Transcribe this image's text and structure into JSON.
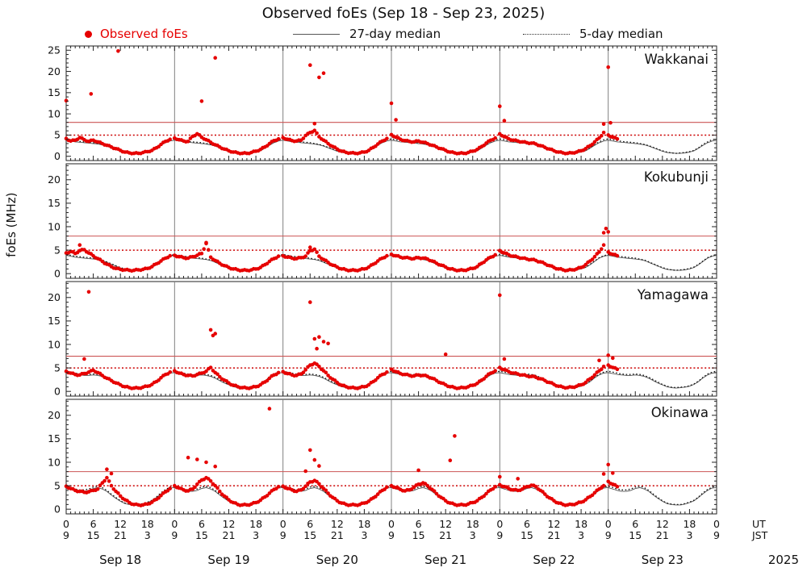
{
  "title": "Observed foEs (Sep 18 - Sep 23, 2025)",
  "ylabel": "foEs (MHz)",
  "legend": {
    "observed": "Observed foEs",
    "median27": "27-day median",
    "median5": "5-day median"
  },
  "axis": {
    "ut_tick_labels": [
      "0",
      "6",
      "12",
      "18"
    ],
    "jst_tick_labels": [
      "9",
      "15",
      "21",
      "3"
    ],
    "ut_label": "UT",
    "jst_label": "JST",
    "day_labels": [
      "Sep 18",
      "Sep 19",
      "Sep 20",
      "Sep 21",
      "Sep 22",
      "Sep 23"
    ],
    "year_label": "2025",
    "hours_total": 144
  },
  "colors": {
    "observed": "#e60000",
    "legend_observed_text": "#e60000",
    "median27": "#555555",
    "median5": "#111111",
    "threshold_solid": "#cc5555",
    "threshold_dotted": "#cc0000",
    "day_boundary": "#808080",
    "panel_border": "#222222"
  },
  "chart_data": {
    "type": "scatter",
    "x_unit": "hours UT since Sep 18 00:00",
    "x_range": [
      0,
      144
    ],
    "grid": "day-boundary vertical lines only",
    "legend_position": "top",
    "panels": [
      {
        "station": "Wakkanai",
        "y_ticks": [
          0,
          5,
          10,
          15,
          20,
          25
        ],
        "y_max": 26,
        "threshold_solid_mhz": 8,
        "threshold_dotted_mhz": 5,
        "observed_days": [
          [
            4.2,
            3.6,
            3.8,
            4.4,
            3.9,
            3.5,
            3.8,
            3.4,
            3.0,
            2.6,
            2.2,
            1.8,
            1.4,
            1.0,
            0.8,
            0.7,
            0.7,
            0.9,
            1.1,
            1.4,
            2.0,
            2.8,
            3.5,
            4.0
          ],
          [
            4.3,
            3.9,
            3.6,
            3.5,
            4.7,
            5.3,
            4.5,
            3.9,
            3.3,
            2.7,
            2.2,
            1.7,
            1.3,
            1.0,
            0.8,
            0.7,
            0.7,
            0.9,
            1.2,
            1.6,
            2.2,
            3.0,
            3.7,
            4.1
          ],
          [
            4.4,
            4.0,
            3.7,
            3.6,
            3.8,
            4.9,
            5.6,
            6.1,
            4.6,
            3.8,
            3.0,
            2.3,
            1.7,
            1.2,
            0.9,
            0.8,
            0.7,
            0.8,
            1.0,
            1.4,
            2.1,
            2.9,
            3.6,
            4.2
          ],
          [
            5.1,
            4.5,
            4.0,
            3.7,
            3.5,
            3.4,
            3.6,
            3.3,
            3.0,
            2.6,
            2.2,
            1.8,
            1.4,
            1.0,
            0.8,
            0.7,
            0.7,
            0.9,
            1.2,
            1.6,
            2.3,
            3.1,
            3.8,
            4.3
          ],
          [
            5.3,
            4.6,
            4.1,
            3.8,
            3.6,
            3.4,
            3.2,
            3.1,
            2.9,
            2.5,
            2.1,
            1.7,
            1.3,
            1.0,
            0.8,
            0.7,
            0.8,
            1.0,
            1.3,
            1.8,
            2.5,
            3.4,
            4.3,
            5.6
          ],
          [
            5.0,
            4.5,
            4.1
          ]
        ],
        "spikes": [
          [
            0,
            13.1
          ],
          [
            5.5,
            14.7
          ],
          [
            11.5,
            24.8
          ],
          [
            30,
            13.0
          ],
          [
            33,
            23.2
          ],
          [
            54,
            21.5
          ],
          [
            55,
            7.7
          ],
          [
            56,
            18.6
          ],
          [
            57,
            19.6
          ],
          [
            72,
            12.5
          ],
          [
            73,
            8.6
          ],
          [
            96,
            11.8
          ],
          [
            97,
            8.4
          ],
          [
            119,
            7.6
          ],
          [
            120,
            21.0
          ],
          [
            120.5,
            7.9
          ]
        ],
        "median27_daily": [
          3.8,
          3.6,
          3.4,
          3.3,
          3.2,
          3.1,
          3.0,
          2.9,
          2.7,
          2.4,
          2.0,
          1.6,
          1.2,
          0.9,
          0.8,
          0.7,
          0.7,
          0.8,
          1.0,
          1.3,
          1.9,
          2.6,
          3.2,
          3.6
        ],
        "median5_daily": [
          4.1,
          3.9,
          3.7,
          3.5,
          3.4,
          3.3,
          3.2,
          3.0,
          2.8,
          2.5,
          2.1,
          1.7,
          1.3,
          1.0,
          0.8,
          0.7,
          0.8,
          0.9,
          1.1,
          1.4,
          2.0,
          2.8,
          3.4,
          3.9
        ]
      },
      {
        "station": "Kokubunji",
        "y_ticks": [
          0,
          5,
          10,
          15,
          20
        ],
        "y_max": 23.4,
        "threshold_solid_mhz": 8,
        "threshold_dotted_mhz": 5,
        "observed_days": [
          [
            4.4,
            4.7,
            4.3,
            4.9,
            5.1,
            4.4,
            3.8,
            3.2,
            2.6,
            2.0,
            1.5,
            1.1,
            0.9,
            0.8,
            0.7,
            0.7,
            0.8,
            0.9,
            1.1,
            1.5,
            2.1,
            2.7,
            3.3,
            3.8
          ],
          [
            3.9,
            3.6,
            3.4,
            3.3,
            3.6,
            3.9,
            4.3,
            6.4,
            3.5,
            2.8,
            2.2,
            1.7,
            1.3,
            1.0,
            0.8,
            0.7,
            0.7,
            0.8,
            1.0,
            1.3,
            1.9,
            2.6,
            3.2,
            3.7
          ],
          [
            3.8,
            3.5,
            3.3,
            3.2,
            3.4,
            3.7,
            4.9,
            5.2,
            3.7,
            3.0,
            2.4,
            1.8,
            1.4,
            1.0,
            0.8,
            0.7,
            0.7,
            0.8,
            1.0,
            1.4,
            2.0,
            2.7,
            3.3,
            3.8
          ],
          [
            4.1,
            3.8,
            3.5,
            3.4,
            3.3,
            3.2,
            3.4,
            3.3,
            3.1,
            2.7,
            2.2,
            1.8,
            1.4,
            1.0,
            0.8,
            0.7,
            0.7,
            0.9,
            1.1,
            1.5,
            2.2,
            2.9,
            3.5,
            4.0
          ],
          [
            4.9,
            4.4,
            4.0,
            3.7,
            3.5,
            3.3,
            3.1,
            3.0,
            2.8,
            2.5,
            2.1,
            1.7,
            1.3,
            1.0,
            0.8,
            0.7,
            0.8,
            1.0,
            1.3,
            1.9,
            2.7,
            3.6,
            4.6,
            6.1
          ],
          [
            4.6,
            4.1,
            3.8
          ]
        ],
        "spikes": [
          [
            3,
            6.1
          ],
          [
            31,
            6.6
          ],
          [
            54,
            5.6
          ],
          [
            119,
            8.7
          ],
          [
            119.5,
            9.6
          ],
          [
            120,
            8.9
          ]
        ],
        "median27_daily": [
          3.9,
          3.7,
          3.5,
          3.4,
          3.3,
          3.2,
          3.1,
          3.0,
          2.8,
          2.4,
          2.0,
          1.6,
          1.2,
          0.9,
          0.8,
          0.7,
          0.7,
          0.8,
          1.0,
          1.3,
          1.9,
          2.6,
          3.3,
          3.7
        ],
        "median5_daily": [
          4.1,
          3.9,
          3.7,
          3.6,
          3.5,
          3.4,
          3.3,
          3.1,
          2.9,
          2.5,
          2.1,
          1.7,
          1.3,
          1.0,
          0.8,
          0.7,
          0.8,
          0.9,
          1.1,
          1.4,
          2.0,
          2.7,
          3.4,
          3.8
        ]
      },
      {
        "station": "Yamagawa",
        "y_ticks": [
          0,
          5,
          10,
          15,
          20
        ],
        "y_max": 23.4,
        "threshold_solid_mhz": 7.5,
        "threshold_dotted_mhz": 5,
        "observed_days": [
          [
            4.3,
            3.9,
            3.6,
            3.5,
            3.8,
            4.1,
            4.5,
            4.0,
            3.4,
            2.8,
            2.3,
            1.8,
            1.4,
            1.0,
            0.8,
            0.7,
            0.7,
            0.9,
            1.1,
            1.5,
            2.1,
            2.9,
            3.6,
            4.1
          ],
          [
            4.4,
            3.9,
            3.6,
            3.4,
            3.3,
            3.6,
            3.9,
            4.3,
            5.1,
            4.0,
            3.1,
            2.4,
            1.8,
            1.3,
            1.0,
            0.8,
            0.7,
            0.8,
            1.0,
            1.4,
            2.0,
            2.8,
            3.5,
            4.0
          ],
          [
            4.2,
            3.8,
            3.5,
            3.4,
            3.7,
            4.6,
            5.6,
            6.0,
            5.3,
            4.4,
            3.4,
            2.6,
            1.9,
            1.3,
            1.0,
            0.8,
            0.7,
            0.8,
            1.0,
            1.4,
            2.1,
            2.9,
            3.6,
            4.1
          ],
          [
            4.7,
            4.2,
            3.8,
            3.6,
            3.4,
            3.3,
            3.5,
            3.4,
            3.2,
            2.8,
            2.3,
            1.8,
            1.4,
            1.0,
            0.8,
            0.7,
            0.8,
            1.0,
            1.3,
            1.7,
            2.4,
            3.2,
            3.9,
            4.4
          ],
          [
            5.1,
            4.6,
            4.2,
            3.9,
            3.7,
            3.5,
            3.3,
            3.2,
            3.0,
            2.7,
            2.3,
            1.9,
            1.5,
            1.1,
            0.9,
            0.8,
            0.9,
            1.1,
            1.4,
            1.9,
            2.7,
            3.5,
            4.4,
            5.3
          ],
          [
            5.6,
            5.1,
            4.7
          ]
        ],
        "spikes": [
          [
            4,
            6.9
          ],
          [
            5,
            21.2
          ],
          [
            32,
            13.1
          ],
          [
            32.5,
            11.9
          ],
          [
            33,
            12.3
          ],
          [
            54,
            19.0
          ],
          [
            55,
            11.2
          ],
          [
            55.5,
            9.1
          ],
          [
            56,
            11.6
          ],
          [
            57,
            10.6
          ],
          [
            58,
            10.2
          ],
          [
            84,
            7.9
          ],
          [
            96,
            20.5
          ],
          [
            97,
            6.9
          ],
          [
            118,
            6.6
          ],
          [
            120,
            7.7
          ],
          [
            121,
            7.1
          ]
        ],
        "median27_daily": [
          4.0,
          3.8,
          3.6,
          3.5,
          3.4,
          3.4,
          3.5,
          3.4,
          3.2,
          2.8,
          2.3,
          1.8,
          1.4,
          1.0,
          0.8,
          0.7,
          0.8,
          0.9,
          1.1,
          1.5,
          2.1,
          2.9,
          3.5,
          3.9
        ],
        "median5_daily": [
          4.3,
          4.1,
          3.9,
          3.7,
          3.6,
          3.6,
          3.7,
          3.6,
          3.4,
          3.0,
          2.5,
          2.0,
          1.5,
          1.1,
          0.9,
          0.8,
          0.9,
          1.0,
          1.2,
          1.6,
          2.2,
          3.0,
          3.7,
          4.1
        ]
      },
      {
        "station": "Okinawa",
        "y_ticks": [
          0,
          5,
          10,
          15,
          20
        ],
        "y_max": 23.4,
        "threshold_solid_mhz": 8,
        "threshold_dotted_mhz": 5,
        "observed_days": [
          [
            4.9,
            4.4,
            4.0,
            3.8,
            3.6,
            3.7,
            4.0,
            4.3,
            5.6,
            6.7,
            5.0,
            3.8,
            2.8,
            2.0,
            1.4,
            1.0,
            0.9,
            0.9,
            1.1,
            1.5,
            2.1,
            2.9,
            3.7,
            4.4
          ],
          [
            5.0,
            4.5,
            4.1,
            3.9,
            4.3,
            5.3,
            6.2,
            6.7,
            6.0,
            5.0,
            3.8,
            2.8,
            2.0,
            1.4,
            1.0,
            0.9,
            0.9,
            1.1,
            1.4,
            1.9,
            2.6,
            3.4,
            4.2,
            4.8
          ],
          [
            4.9,
            4.4,
            4.1,
            3.8,
            4.1,
            4.9,
            5.8,
            6.1,
            5.4,
            4.4,
            3.4,
            2.5,
            1.8,
            1.3,
            1.0,
            0.9,
            0.9,
            1.0,
            1.3,
            1.7,
            2.4,
            3.2,
            4.0,
            4.7
          ],
          [
            5.0,
            4.6,
            4.2,
            3.9,
            4.1,
            4.7,
            5.3,
            5.6,
            5.0,
            4.2,
            3.3,
            2.5,
            1.8,
            1.3,
            1.0,
            0.9,
            0.9,
            1.1,
            1.4,
            1.8,
            2.5,
            3.3,
            4.1,
            4.8
          ],
          [
            5.2,
            4.8,
            4.4,
            4.1,
            4.0,
            4.3,
            4.8,
            5.1,
            4.8,
            4.0,
            3.2,
            2.4,
            1.8,
            1.3,
            1.0,
            0.9,
            1.0,
            1.2,
            1.5,
            2.0,
            2.7,
            3.5,
            4.3,
            5.0
          ],
          [
            5.9,
            5.3,
            4.8
          ]
        ],
        "spikes": [
          [
            9,
            8.5
          ],
          [
            10,
            7.6
          ],
          [
            27,
            11.0
          ],
          [
            29,
            10.6
          ],
          [
            31,
            10.0
          ],
          [
            33,
            9.1
          ],
          [
            45,
            21.4
          ],
          [
            53,
            8.1
          ],
          [
            54,
            12.6
          ],
          [
            55,
            10.5
          ],
          [
            56,
            9.2
          ],
          [
            78,
            8.3
          ],
          [
            85,
            10.4
          ],
          [
            86,
            15.6
          ],
          [
            96,
            6.9
          ],
          [
            100,
            6.5
          ],
          [
            119,
            7.5
          ],
          [
            120,
            9.5
          ],
          [
            121,
            7.7
          ]
        ],
        "median27_daily": [
          4.6,
          4.3,
          4.0,
          3.8,
          3.8,
          4.0,
          4.4,
          4.6,
          4.3,
          3.8,
          3.0,
          2.3,
          1.7,
          1.2,
          1.0,
          0.9,
          0.9,
          1.1,
          1.4,
          1.8,
          2.5,
          3.3,
          4.0,
          4.5
        ],
        "median5_daily": [
          4.9,
          4.6,
          4.3,
          4.1,
          4.1,
          4.3,
          4.7,
          4.9,
          4.6,
          4.0,
          3.2,
          2.5,
          1.8,
          1.3,
          1.1,
          1.0,
          1.0,
          1.2,
          1.5,
          1.9,
          2.6,
          3.5,
          4.2,
          4.7
        ]
      }
    ]
  }
}
